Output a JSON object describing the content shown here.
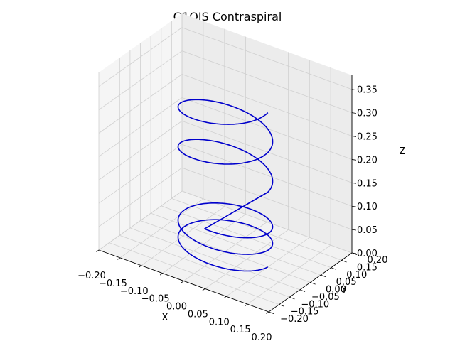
{
  "chart_data": {
    "type": "line3d",
    "title": "G1OJS Contraspiral",
    "xlabel": "X",
    "ylabel": "Y",
    "zlabel": "Z",
    "xlim": [
      -0.2,
      0.2
    ],
    "ylim": [
      -0.2,
      0.2
    ],
    "zlim": [
      0.0,
      0.38
    ],
    "grid": true,
    "xticks": [
      "−0.20",
      "−0.15",
      "−0.10",
      "−0.05",
      "0.00",
      "0.05",
      "0.10",
      "0.15",
      "0.20"
    ],
    "yticks": [
      "−0.20",
      "−0.15",
      "−0.10",
      "−0.05",
      "0.00",
      "0.05",
      "0.10",
      "0.15",
      "0.20"
    ],
    "zticks": [
      "0.00",
      "0.05",
      "0.10",
      "0.15",
      "0.20",
      "0.25",
      "0.30",
      "0.35"
    ],
    "series": [
      {
        "color": "#0000cc",
        "segments": [
          {
            "kind": "helix",
            "center": [
              0.0,
              0.0
            ],
            "radius": 0.1,
            "z_start": 0.0,
            "z_end": 0.08,
            "turns": 2.25,
            "phase_start": 0.0,
            "direction": -1
          },
          {
            "kind": "helix",
            "center": [
              0.0,
              0.0
            ],
            "radius": 0.1,
            "z_start": 0.16,
            "z_end": 0.33,
            "turns": 2.0,
            "phase_start": 0.0,
            "direction": 1
          }
        ]
      }
    ]
  }
}
